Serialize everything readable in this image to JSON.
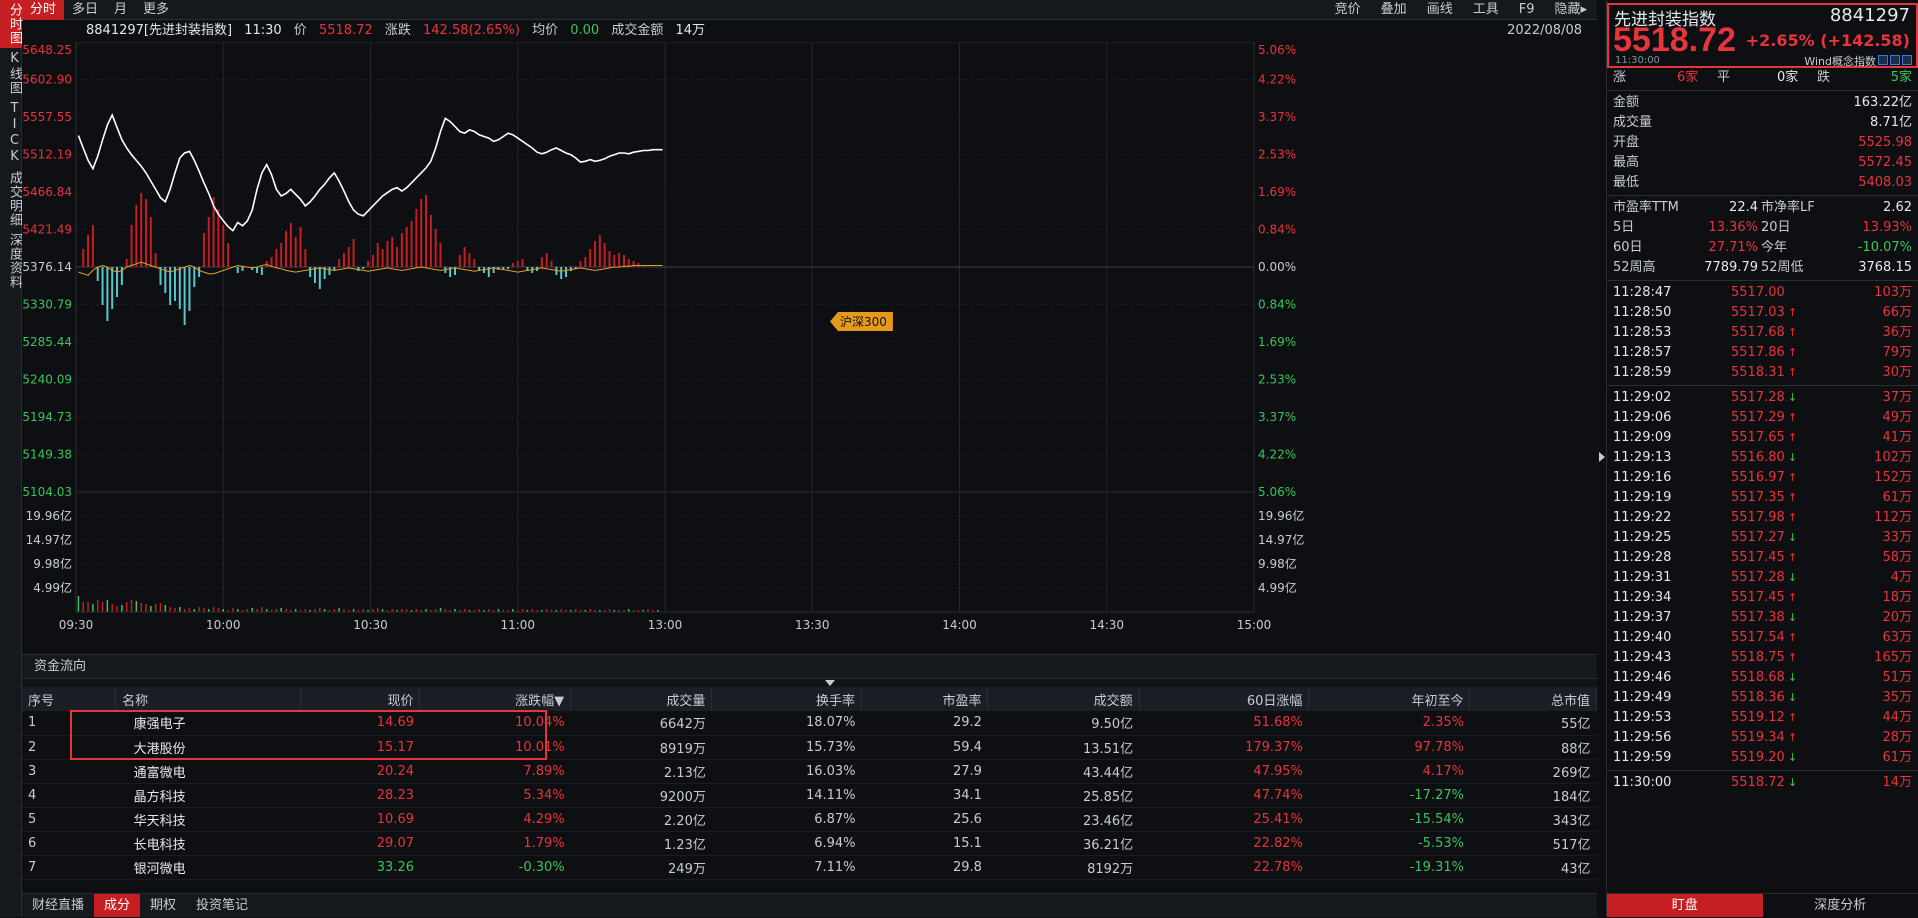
{
  "vtabs": [
    "分时图",
    "K线图",
    "TICK",
    "成交明细",
    "深度资料"
  ],
  "topmenu": {
    "left": [
      "分时",
      "多日",
      "月",
      "更多"
    ],
    "right": [
      "竞价",
      "叠加",
      "画线",
      "工具",
      "F9",
      "隐藏▸"
    ]
  },
  "info": {
    "code_name": "8841297[先进封装指数]",
    "time": "11:30",
    "price_label": "价",
    "price": "5518.72",
    "chg_label": "涨跌",
    "chg": "142.58(2.65%)",
    "avg_label": "均价",
    "avg": "0.00",
    "amt_label": "成交金额",
    "amt": "14万",
    "date": "2022/08/08"
  },
  "chart_data": {
    "type": "line",
    "price_axis": [
      "5648.25",
      "5602.90",
      "5557.55",
      "5512.19",
      "5466.84",
      "5421.49",
      "5376.14",
      "5330.79",
      "5285.44",
      "5240.09",
      "5194.73",
      "5149.38",
      "5104.03"
    ],
    "pct_axis": [
      "5.06%",
      "4.22%",
      "3.37%",
      "2.53%",
      "1.69%",
      "0.84%",
      "0.00%",
      "0.84%",
      "1.69%",
      "2.53%",
      "3.37%",
      "4.22%",
      "5.06%"
    ],
    "vol_axis": [
      "19.96亿",
      "14.97亿",
      "9.98亿",
      "4.99亿"
    ],
    "x_labels": [
      "09:30",
      "10:00",
      "10:30",
      "11:00",
      "13:00",
      "13:30",
      "14:00",
      "14:30",
      "15:00"
    ],
    "ylim": [
      5104.03,
      5648.25
    ],
    "base": 5376.14,
    "price": [
      5535,
      5520,
      5505,
      5495,
      5510,
      5530,
      5548,
      5560,
      5545,
      5530,
      5520,
      5512,
      5505,
      5498,
      5490,
      5480,
      5470,
      5460,
      5455,
      5470,
      5490,
      5508,
      5514,
      5516,
      5505,
      5492,
      5478,
      5465,
      5450,
      5440,
      5432,
      5425,
      5420,
      5430,
      5426,
      5432,
      5445,
      5470,
      5490,
      5500,
      5488,
      5470,
      5462,
      5465,
      5470,
      5464,
      5458,
      5450,
      5455,
      5462,
      5470,
      5476,
      5484,
      5490,
      5480,
      5468,
      5455,
      5445,
      5440,
      5438,
      5444,
      5450,
      5456,
      5462,
      5466,
      5470,
      5472,
      5468,
      5472,
      5478,
      5484,
      5490,
      5496,
      5504,
      5520,
      5540,
      5556,
      5552,
      5546,
      5540,
      5538,
      5542,
      5540,
      5536,
      5534,
      5532,
      5528,
      5530,
      5534,
      5538,
      5536,
      5532,
      5528,
      5524,
      5520,
      5515,
      5513,
      5515,
      5518,
      5520,
      5517,
      5514,
      5512,
      5508,
      5503,
      5504,
      5506,
      5504,
      5505,
      5507,
      5510,
      5512,
      5514,
      5514,
      5513,
      5515,
      5516,
      5517,
      5517,
      5518,
      5518,
      5518
    ],
    "avg": [
      5370,
      5368,
      5366,
      5372,
      5376,
      5378,
      5376,
      5372,
      5370,
      5372,
      5376,
      5378,
      5380,
      5382,
      5380,
      5378,
      5376,
      5374,
      5372,
      5370,
      5372,
      5374,
      5376,
      5378,
      5376,
      5372,
      5370,
      5368,
      5368,
      5370,
      5372,
      5374,
      5376,
      5378,
      5377,
      5376,
      5375,
      5376,
      5378,
      5379,
      5377,
      5375,
      5374,
      5372,
      5371,
      5370,
      5371,
      5372,
      5373,
      5374,
      5375,
      5374,
      5373,
      5372,
      5373,
      5374,
      5375,
      5374,
      5373,
      5372,
      5371,
      5372,
      5373,
      5374,
      5375,
      5374,
      5373,
      5372,
      5373,
      5374,
      5375,
      5376,
      5375,
      5374,
      5373,
      5372,
      5373,
      5374,
      5375,
      5374,
      5373,
      5372,
      5371,
      5372,
      5373,
      5374,
      5375,
      5374,
      5373,
      5372,
      5371,
      5370,
      5371,
      5372,
      5373,
      5374,
      5375,
      5374,
      5373,
      5372,
      5371,
      5372,
      5373,
      5374,
      5375,
      5374,
      5373,
      5372,
      5373,
      5374,
      5375,
      5376,
      5376,
      5377,
      5377,
      5378,
      5378,
      5378,
      5378,
      5378,
      5378,
      5378
    ],
    "bars": [
      0,
      18,
      32,
      42,
      -14,
      -38,
      -54,
      -42,
      -30,
      -18,
      8,
      42,
      62,
      74,
      68,
      50,
      14,
      -18,
      -26,
      -38,
      -34,
      -42,
      -58,
      -44,
      -20,
      -10,
      34,
      50,
      70,
      58,
      42,
      24,
      0,
      -6,
      -4,
      0,
      -3,
      -6,
      -8,
      6,
      10,
      18,
      24,
      36,
      44,
      30,
      40,
      18,
      -10,
      -16,
      -22,
      -12,
      -8,
      -4,
      8,
      14,
      20,
      28,
      -4,
      -2,
      6,
      12,
      24,
      18,
      26,
      30,
      20,
      34,
      40,
      46,
      58,
      68,
      72,
      52,
      38,
      24,
      -6,
      -10,
      -8,
      12,
      20,
      14,
      8,
      -4,
      -6,
      -10,
      -6,
      -3,
      -2,
      -2,
      4,
      6,
      8,
      -4,
      -6,
      -4,
      10,
      14,
      6,
      -8,
      -12,
      -10,
      -4,
      -2,
      6,
      10,
      18,
      26,
      32,
      24,
      16,
      12,
      14,
      12,
      8,
      6,
      4,
      2,
      0,
      0
    ],
    "vols": [
      16,
      10,
      10,
      8,
      12,
      10,
      12,
      8,
      6,
      7,
      10,
      12,
      11,
      9,
      8,
      6,
      8,
      9,
      7,
      5,
      4,
      5,
      3,
      4,
      3,
      5,
      4,
      3,
      5,
      4,
      3,
      2,
      4,
      3,
      2,
      3,
      4,
      3,
      5,
      3,
      2,
      3,
      4,
      3,
      2,
      3,
      2,
      3,
      2,
      3,
      4,
      3,
      2,
      3,
      4,
      3,
      2,
      3,
      2,
      3,
      2,
      3,
      4,
      3,
      2,
      3,
      2,
      3,
      3,
      2,
      3,
      2,
      3,
      2,
      3,
      4,
      3,
      2,
      3,
      2,
      3,
      2,
      2,
      3,
      2,
      3,
      2,
      3,
      2,
      2,
      3,
      2,
      3,
      2,
      3,
      2,
      2,
      3,
      2,
      2,
      3,
      2,
      2,
      3,
      2,
      2,
      3,
      2,
      2,
      2,
      3,
      2,
      2,
      2,
      3,
      2,
      2,
      2,
      3,
      2,
      2
    ]
  },
  "ref_tag": "沪深300",
  "flow_header": "资金流向",
  "table": {
    "headers": [
      "序号",
      "名称",
      "现价",
      "涨跌幅▼",
      "成交量",
      "换手率",
      "市盈率",
      "成交额",
      "60日涨幅",
      "年初至今",
      "总市值"
    ],
    "rows": [
      [
        "1",
        "康强电子",
        "14.69",
        "10.04%",
        "6642万",
        "18.07%",
        "29.2",
        "9.50亿",
        "51.68%",
        "2.35%",
        "55亿"
      ],
      [
        "2",
        "大港股份",
        "15.17",
        "10.01%",
        "8919万",
        "15.73%",
        "59.4",
        "13.51亿",
        "179.37%",
        "97.78%",
        "88亿"
      ],
      [
        "3",
        "通富微电",
        "20.24",
        "7.89%",
        "2.13亿",
        "16.03%",
        "27.9",
        "43.44亿",
        "47.95%",
        "4.17%",
        "269亿"
      ],
      [
        "4",
        "晶方科技",
        "28.23",
        "5.34%",
        "9200万",
        "14.11%",
        "34.1",
        "25.85亿",
        "47.74%",
        "-17.27%",
        "184亿"
      ],
      [
        "5",
        "华天科技",
        "10.69",
        "4.29%",
        "2.20亿",
        "6.87%",
        "25.6",
        "23.46亿",
        "25.41%",
        "-15.54%",
        "343亿"
      ],
      [
        "6",
        "长电科技",
        "29.07",
        "1.79%",
        "1.23亿",
        "6.94%",
        "15.1",
        "36.21亿",
        "22.82%",
        "-5.53%",
        "517亿"
      ],
      [
        "7",
        "银河微电",
        "33.26",
        "-0.30%",
        "249万",
        "7.11%",
        "29.8",
        "8192万",
        "22.78%",
        "-19.31%",
        "43亿"
      ]
    ]
  },
  "bottom_tabs": [
    "财经直播",
    "成分",
    "期权",
    "投资笔记"
  ],
  "right": {
    "name": "先进封装指数",
    "code": "8841297",
    "price": "5518.72",
    "chg": "+2.65% (+142.58)",
    "time": "11:30:00",
    "wind": "Wind概念指数",
    "up_label": "涨",
    "up": "6家",
    "flat_label": "平",
    "flat": "0家",
    "down_label": "跌",
    "down": "5家",
    "stats": [
      {
        "k": "金额",
        "v": "163.22亿",
        "c": "white"
      },
      {
        "k": "成交量",
        "v": "8.71亿",
        "c": "white"
      },
      {
        "k": "开盘",
        "v": "5525.98",
        "c": "red"
      },
      {
        "k": "最高",
        "v": "5572.45",
        "c": "red"
      },
      {
        "k": "最低",
        "v": "5408.03",
        "c": "red"
      }
    ],
    "pairs": [
      {
        "k1": "市盈率TTM",
        "v1": "22.4",
        "c1": "white",
        "k2": "市净率LF",
        "v2": "2.62",
        "c2": "white"
      },
      {
        "k1": "5日",
        "v1": "13.36%",
        "c1": "red",
        "k2": "20日",
        "v2": "13.93%",
        "c2": "red"
      },
      {
        "k1": "60日",
        "v1": "27.71%",
        "c1": "red",
        "k2": "今年",
        "v2": "-10.07%",
        "c2": "green"
      },
      {
        "k1": "52周高",
        "v1": "7789.79",
        "c1": "white",
        "k2": "52周低",
        "v2": "3768.15",
        "c2": "white"
      }
    ],
    "ticks": [
      {
        "t": "11:28:47",
        "p": "5517.00",
        "a": "",
        "v": "103万"
      },
      {
        "t": "11:28:50",
        "p": "5517.03",
        "a": "up",
        "v": "66万"
      },
      {
        "t": "11:28:53",
        "p": "5517.68",
        "a": "up",
        "v": "36万"
      },
      {
        "t": "11:28:57",
        "p": "5517.86",
        "a": "up",
        "v": "79万"
      },
      {
        "t": "11:28:59",
        "p": "5518.31",
        "a": "up",
        "v": "30万"
      },
      {
        "t": "11:29:02",
        "p": "5517.28",
        "a": "down",
        "v": "37万"
      },
      {
        "t": "11:29:06",
        "p": "5517.29",
        "a": "up",
        "v": "49万"
      },
      {
        "t": "11:29:09",
        "p": "5517.65",
        "a": "up",
        "v": "41万"
      },
      {
        "t": "11:29:13",
        "p": "5516.80",
        "a": "down",
        "v": "102万"
      },
      {
        "t": "11:29:16",
        "p": "5516.97",
        "a": "up",
        "v": "152万"
      },
      {
        "t": "11:29:19",
        "p": "5517.35",
        "a": "up",
        "v": "61万"
      },
      {
        "t": "11:29:22",
        "p": "5517.98",
        "a": "up",
        "v": "112万"
      },
      {
        "t": "11:29:25",
        "p": "5517.27",
        "a": "down",
        "v": "33万"
      },
      {
        "t": "11:29:28",
        "p": "5517.45",
        "a": "up",
        "v": "58万"
      },
      {
        "t": "11:29:31",
        "p": "5517.28",
        "a": "down",
        "v": "4万"
      },
      {
        "t": "11:29:34",
        "p": "5517.45",
        "a": "up",
        "v": "18万"
      },
      {
        "t": "11:29:37",
        "p": "5517.38",
        "a": "down",
        "v": "20万"
      },
      {
        "t": "11:29:40",
        "p": "5517.54",
        "a": "up",
        "v": "63万"
      },
      {
        "t": "11:29:43",
        "p": "5518.75",
        "a": "up",
        "v": "165万"
      },
      {
        "t": "11:29:46",
        "p": "5518.68",
        "a": "down",
        "v": "51万"
      },
      {
        "t": "11:29:49",
        "p": "5518.36",
        "a": "down",
        "v": "35万"
      },
      {
        "t": "11:29:53",
        "p": "5519.12",
        "a": "up",
        "v": "44万"
      },
      {
        "t": "11:29:56",
        "p": "5519.34",
        "a": "up",
        "v": "28万"
      },
      {
        "t": "11:29:59",
        "p": "5519.20",
        "a": "down",
        "v": "61万"
      },
      {
        "t": "11:30:00",
        "p": "5518.72",
        "a": "down",
        "v": "14万"
      }
    ],
    "bottom": [
      "盯盘",
      "深度分析"
    ]
  }
}
